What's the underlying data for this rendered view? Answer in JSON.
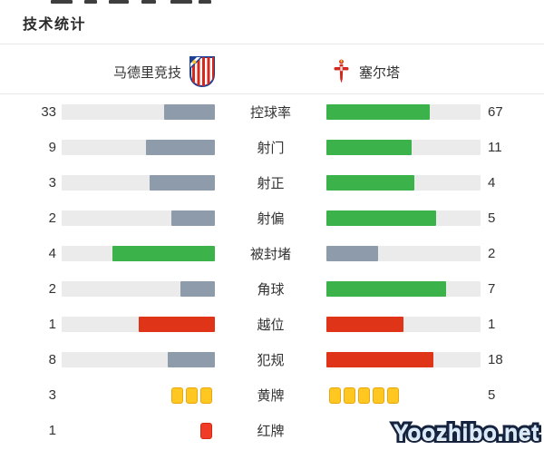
{
  "title": "技术统计",
  "header": {
    "home_team": "马德里竞技",
    "away_team": "塞尔塔"
  },
  "watermark": "Yoozhibo.net",
  "colors": {
    "green": "#3bb34a",
    "gray": "#8d9bab",
    "red": "#e03418",
    "track": "#ebebeb",
    "yellow_card": "#ffc71f",
    "red_card": "#f03c26"
  },
  "rows": [
    {
      "label": "控球率",
      "type": "bar",
      "home": {
        "value": 33,
        "color": "gray"
      },
      "away": {
        "value": 67,
        "color": "green"
      }
    },
    {
      "label": "射门",
      "type": "bar",
      "home": {
        "value": 9,
        "color": "gray"
      },
      "away": {
        "value": 11,
        "color": "green"
      }
    },
    {
      "label": "射正",
      "type": "bar",
      "home": {
        "value": 3,
        "color": "gray"
      },
      "away": {
        "value": 4,
        "color": "green"
      }
    },
    {
      "label": "射偏",
      "type": "bar",
      "home": {
        "value": 2,
        "color": "gray"
      },
      "away": {
        "value": 5,
        "color": "green"
      }
    },
    {
      "label": "被封堵",
      "type": "bar",
      "home": {
        "value": 4,
        "color": "green"
      },
      "away": {
        "value": 2,
        "color": "gray"
      }
    },
    {
      "label": "角球",
      "type": "bar",
      "home": {
        "value": 2,
        "color": "gray"
      },
      "away": {
        "value": 7,
        "color": "green"
      }
    },
    {
      "label": "越位",
      "type": "bar",
      "home": {
        "value": 1,
        "color": "red"
      },
      "away": {
        "value": 1,
        "color": "red"
      }
    },
    {
      "label": "犯规",
      "type": "bar",
      "home": {
        "value": 8,
        "color": "gray"
      },
      "away": {
        "value": 18,
        "color": "red"
      }
    },
    {
      "label": "黄牌",
      "type": "cards",
      "home": {
        "value": 3,
        "color": "yellow"
      },
      "away": {
        "value": 5,
        "color": "yellow"
      }
    },
    {
      "label": "红牌",
      "type": "cards",
      "home": {
        "value": 1,
        "color": "red"
      },
      "away": {
        "value": 0,
        "color": "red"
      }
    }
  ],
  "chart_data": {
    "type": "bar",
    "title": "技术统计",
    "orientation": "horizontal-mirrored",
    "categories": [
      "控球率",
      "射门",
      "射正",
      "射偏",
      "被封堵",
      "角球",
      "越位",
      "犯规",
      "黄牌",
      "红牌"
    ],
    "series": [
      {
        "name": "马德里竞技",
        "values": [
          33,
          9,
          3,
          2,
          4,
          2,
          1,
          8,
          3,
          1
        ]
      },
      {
        "name": "塞尔塔",
        "values": [
          67,
          11,
          4,
          5,
          2,
          7,
          1,
          18,
          5,
          0
        ]
      }
    ],
    "legend_position": "top",
    "notes": "Each bar fill length equals value divided by the row total; green = higher side, slate gray = lower side, red for negative stats (offside/fouls); yellow/red card rows drawn as card icons."
  }
}
